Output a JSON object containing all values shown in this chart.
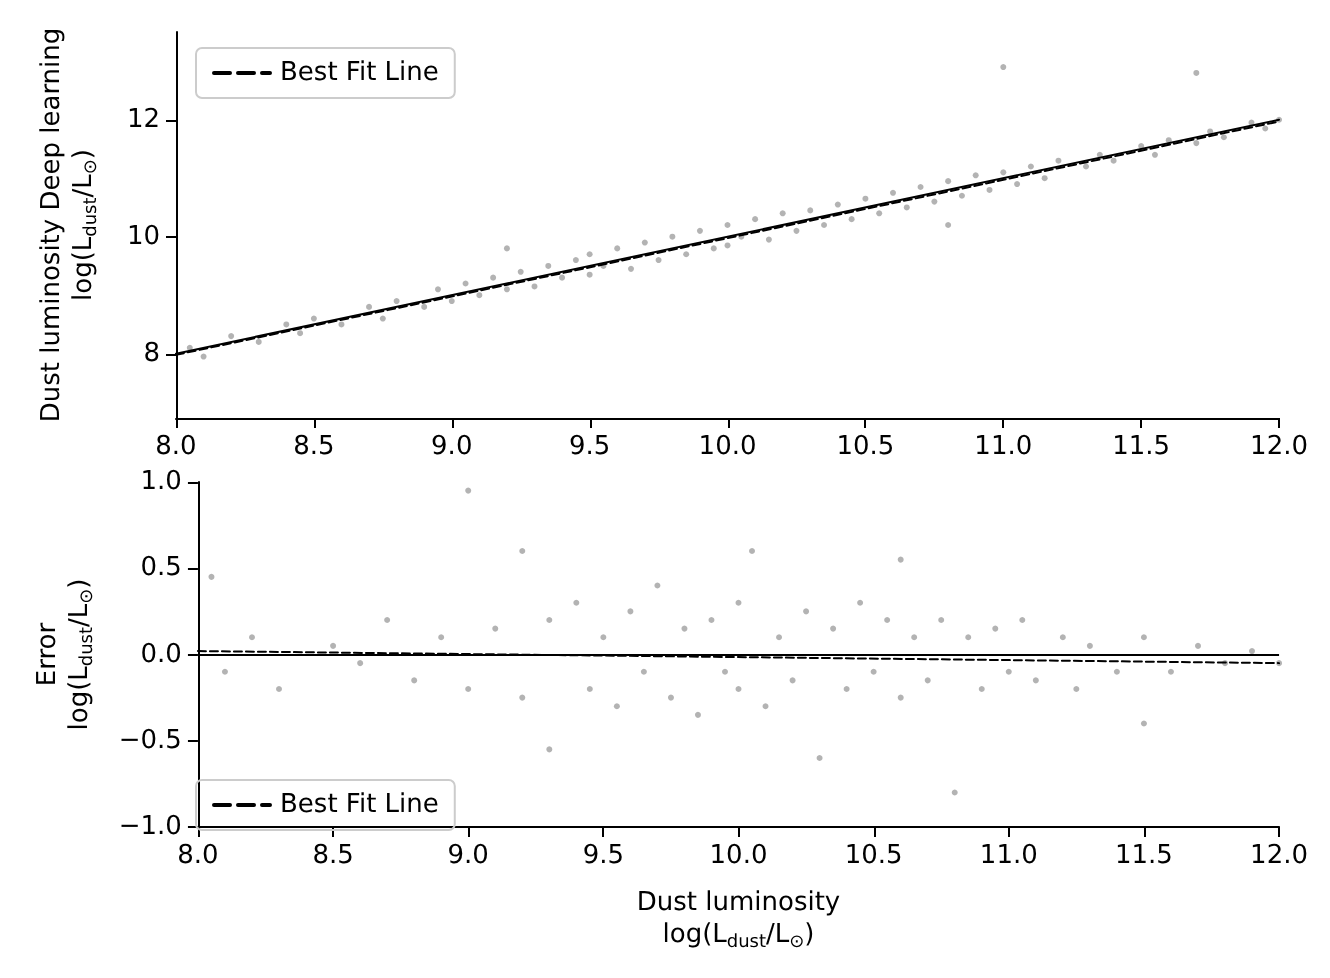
{
  "chart_data": [
    {
      "type": "scatter",
      "ylabel": "Dust luminosity Deep learning\nlog(L$_{dust}$/L$_{⊙}$)",
      "xlim": [
        8,
        12
      ],
      "xticks": [
        {
          "value": 8,
          "label": "8.0"
        },
        {
          "value": 8.5,
          "label": "8.5"
        },
        {
          "value": 9,
          "label": "9.0"
        },
        {
          "value": 9.5,
          "label": "9.5"
        },
        {
          "value": 10,
          "label": "10.0"
        },
        {
          "value": 10.5,
          "label": "10.5"
        },
        {
          "value": 11,
          "label": "11.0"
        },
        {
          "value": 11.5,
          "label": "11.5"
        },
        {
          "value": 12,
          "label": "12.0"
        }
      ],
      "ylim": [
        6.9,
        13.5
      ],
      "yticks": [
        8,
        10,
        12
      ],
      "grid": false,
      "legend": "top left",
      "marker": "circle",
      "series": [
        {
          "color": "#a0a0a0",
          "x": [
            8.05,
            8.1,
            8.2,
            8.3,
            8.4,
            8.45,
            8.5,
            8.6,
            8.7,
            8.75,
            8.8,
            8.9,
            8.95,
            9.0,
            9.05,
            9.1,
            9.15,
            9.2,
            9.25,
            9.3,
            9.35,
            9.4,
            9.45,
            9.5,
            9.5,
            9.55,
            9.6,
            9.65,
            9.7,
            9.75,
            9.8,
            9.85,
            9.9,
            9.95,
            10.0,
            10.0,
            10.05,
            10.1,
            10.15,
            10.2,
            10.25,
            10.3,
            10.35,
            10.4,
            10.45,
            10.5,
            10.55,
            10.6,
            10.65,
            10.7,
            10.75,
            10.8,
            10.85,
            10.9,
            10.95,
            11.0,
            11.05,
            11.1,
            11.15,
            11.2,
            11.3,
            11.35,
            11.4,
            11.5,
            11.55,
            11.6,
            11.7,
            11.75,
            11.8,
            11.9,
            11.95,
            12.0,
            11.0,
            11.7,
            9.2,
            10.8
          ],
          "values": [
            8.1,
            7.95,
            8.3,
            8.2,
            8.5,
            8.35,
            8.6,
            8.5,
            8.8,
            8.6,
            8.9,
            8.8,
            9.1,
            8.9,
            9.2,
            9.0,
            9.3,
            9.1,
            9.4,
            9.15,
            9.5,
            9.3,
            9.6,
            9.35,
            9.7,
            9.5,
            9.8,
            9.45,
            9.9,
            9.6,
            10.0,
            9.7,
            10.1,
            9.8,
            10.2,
            9.85,
            10.0,
            10.3,
            9.95,
            10.4,
            10.1,
            10.45,
            10.2,
            10.55,
            10.3,
            10.65,
            10.4,
            10.75,
            10.5,
            10.85,
            10.6,
            10.95,
            10.7,
            11.05,
            10.8,
            11.1,
            10.9,
            11.2,
            11.0,
            11.3,
            11.2,
            11.4,
            11.3,
            11.55,
            11.4,
            11.65,
            11.6,
            11.8,
            11.7,
            11.95,
            11.85,
            12.0,
            12.9,
            12.8,
            9.8,
            10.2
          ]
        },
        {
          "type": "line",
          "name": "Best Fit Line",
          "color": "#000000",
          "line_style": "dashed",
          "marker": "none",
          "x": [
            8,
            12
          ],
          "values": [
            7.98,
            11.97
          ]
        },
        {
          "type": "line",
          "color": "#000000",
          "line_style": "solid",
          "marker": "none",
          "x": [
            8,
            12
          ],
          "values": [
            8,
            12
          ]
        }
      ]
    },
    {
      "type": "scatter",
      "xlabel": "Dust luminosity\nlog(L$_{dust}$/L$_{⊙}$)",
      "ylabel": "Error\nlog(L$_{dust}$/L$_{⊙}$)",
      "xlim": [
        8,
        12
      ],
      "xticks": [
        {
          "value": 8,
          "label": "8.0"
        },
        {
          "value": 8.5,
          "label": "8.5"
        },
        {
          "value": 9,
          "label": "9.0"
        },
        {
          "value": 9.5,
          "label": "9.5"
        },
        {
          "value": 10,
          "label": "10.0"
        },
        {
          "value": 10.5,
          "label": "10.5"
        },
        {
          "value": 11,
          "label": "11.0"
        },
        {
          "value": 11.5,
          "label": "11.5"
        },
        {
          "value": 12,
          "label": "12.0"
        }
      ],
      "ylim": [
        -1,
        1
      ],
      "yticks": [
        {
          "value": -1,
          "label": "−1.0"
        },
        {
          "value": -0.5,
          "label": "−0.5"
        },
        {
          "value": 0,
          "label": "0.0"
        },
        {
          "value": 0.5,
          "label": "0.5"
        },
        {
          "value": 1,
          "label": "1.0"
        }
      ],
      "grid": false,
      "legend": "bottom left",
      "marker": "circle",
      "ref_lines": [
        {
          "axis": "y",
          "value": 0,
          "color": "#000000"
        }
      ],
      "series": [
        {
          "color": "#a0a0a0",
          "x": [
            8.05,
            8.1,
            8.2,
            8.3,
            8.5,
            8.6,
            8.7,
            8.8,
            8.9,
            9.0,
            9.0,
            9.1,
            9.2,
            9.3,
            9.3,
            9.4,
            9.45,
            9.5,
            9.55,
            9.6,
            9.65,
            9.7,
            9.75,
            9.8,
            9.85,
            9.9,
            9.95,
            10.0,
            10.0,
            10.05,
            10.1,
            10.15,
            10.2,
            10.25,
            10.3,
            10.35,
            10.4,
            10.45,
            10.5,
            10.55,
            10.6,
            10.65,
            10.7,
            10.75,
            10.8,
            10.85,
            10.9,
            10.95,
            11.0,
            11.05,
            11.1,
            11.2,
            11.25,
            11.3,
            11.4,
            11.5,
            11.6,
            11.7,
            11.8,
            11.9,
            12.0,
            9.2,
            10.6,
            11.5
          ],
          "values": [
            0.45,
            -0.1,
            0.1,
            -0.2,
            0.05,
            -0.05,
            0.2,
            -0.15,
            0.1,
            -0.2,
            0.95,
            0.15,
            -0.25,
            0.2,
            -0.55,
            0.3,
            -0.2,
            0.1,
            -0.3,
            0.25,
            -0.1,
            0.4,
            -0.25,
            0.15,
            -0.35,
            0.2,
            -0.1,
            0.3,
            -0.2,
            0.6,
            -0.3,
            0.1,
            -0.15,
            0.25,
            -0.6,
            0.15,
            -0.2,
            0.3,
            -0.1,
            0.2,
            -0.25,
            0.1,
            -0.15,
            0.2,
            -0.8,
            0.1,
            -0.2,
            0.15,
            -0.1,
            0.2,
            -0.15,
            0.1,
            -0.2,
            0.05,
            -0.1,
            0.1,
            -0.1,
            0.05,
            -0.05,
            0.02,
            -0.05,
            0.6,
            0.55,
            -0.4
          ]
        },
        {
          "type": "line",
          "name": "Best Fit Line",
          "color": "#000000",
          "line_style": "dashed",
          "marker": "none",
          "x": [
            8,
            12
          ],
          "values": [
            0.02,
            -0.05
          ]
        }
      ]
    }
  ]
}
